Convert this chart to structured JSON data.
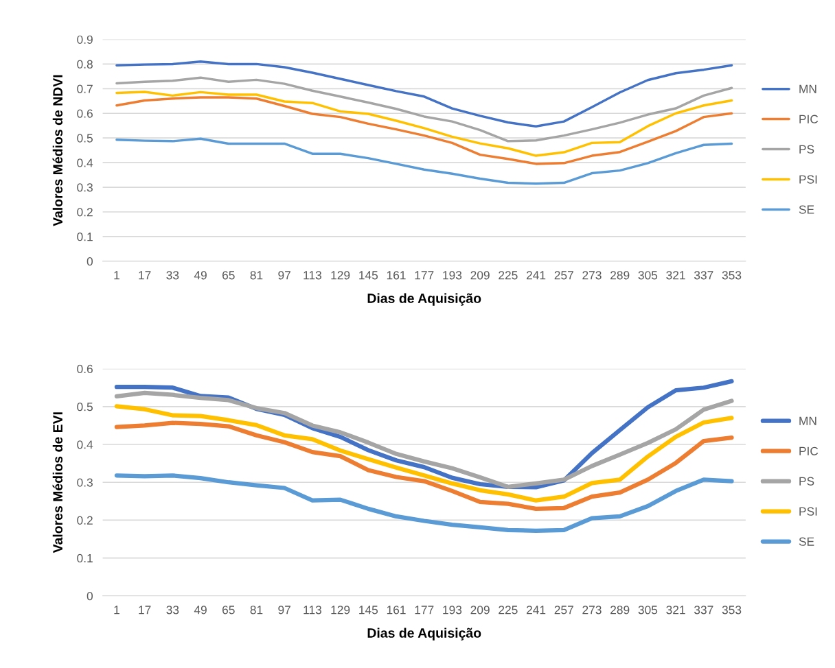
{
  "chart_data": [
    {
      "type": "line",
      "ylabel": "Valores Médios de NDVI",
      "xlabel": "Dias de Aquisição",
      "categories": [
        "1",
        "17",
        "33",
        "49",
        "65",
        "81",
        "97",
        "113",
        "129",
        "145",
        "161",
        "177",
        "193",
        "209",
        "225",
        "241",
        "257",
        "273",
        "289",
        "305",
        "321",
        "337",
        "353"
      ],
      "ylim": [
        0,
        0.9
      ],
      "yticks": [
        {
          "value": 0,
          "label": "0"
        },
        0.1,
        0.2,
        0.3,
        0.4,
        0.5,
        0.6,
        0.7,
        0.8,
        0.9
      ],
      "grid": "y",
      "legend": "right",
      "series": [
        {
          "name": "MN",
          "color": "#4472c4",
          "values": [
            0.795,
            0.798,
            0.8,
            0.81,
            0.8,
            0.8,
            0.787,
            0.765,
            0.74,
            0.715,
            0.69,
            0.668,
            0.62,
            0.59,
            0.563,
            0.547,
            0.567,
            0.625,
            0.685,
            0.735,
            0.763,
            0.777,
            0.795
          ]
        },
        {
          "name": "PIC",
          "color": "#ed7d31",
          "values": [
            0.632,
            0.652,
            0.66,
            0.665,
            0.665,
            0.66,
            0.63,
            0.598,
            0.585,
            0.558,
            0.535,
            0.51,
            0.48,
            0.432,
            0.415,
            0.395,
            0.398,
            0.428,
            0.443,
            0.485,
            0.528,
            0.585,
            0.6
          ]
        },
        {
          "name": "PS",
          "color": "#a5a5a5",
          "values": [
            0.722,
            0.728,
            0.732,
            0.745,
            0.728,
            0.736,
            0.72,
            0.692,
            0.668,
            0.644,
            0.618,
            0.587,
            0.567,
            0.532,
            0.487,
            0.49,
            0.51,
            0.535,
            0.562,
            0.595,
            0.62,
            0.672,
            0.703
          ]
        },
        {
          "name": "PSI",
          "color": "#ffc000",
          "values": [
            0.683,
            0.687,
            0.672,
            0.686,
            0.676,
            0.676,
            0.648,
            0.642,
            0.608,
            0.598,
            0.57,
            0.54,
            0.505,
            0.478,
            0.458,
            0.428,
            0.442,
            0.48,
            0.483,
            0.548,
            0.6,
            0.632,
            0.652
          ]
        },
        {
          "name": "SE",
          "color": "#5b9bd5",
          "values": [
            0.493,
            0.489,
            0.487,
            0.497,
            0.477,
            0.477,
            0.477,
            0.436,
            0.436,
            0.418,
            0.395,
            0.372,
            0.355,
            0.335,
            0.318,
            0.315,
            0.318,
            0.357,
            0.368,
            0.398,
            0.438,
            0.472,
            0.477
          ]
        }
      ]
    },
    {
      "type": "line",
      "ylabel": "Valores Médios de EVI",
      "xlabel": "Dias de Aquisição",
      "categories": [
        "1",
        "17",
        "33",
        "49",
        "65",
        "81",
        "97",
        "113",
        "129",
        "145",
        "161",
        "177",
        "193",
        "209",
        "225",
        "241",
        "257",
        "273",
        "289",
        "305",
        "321",
        "337",
        "353"
      ],
      "ylim": [
        0,
        0.6
      ],
      "yticks": [
        {
          "value": 0,
          "label": "0"
        },
        0.1,
        0.2,
        0.3,
        0.4,
        0.5,
        0.6
      ],
      "grid": "y",
      "legend": "right",
      "series": [
        {
          "name": "MN",
          "color": "#4472c4",
          "values": [
            0.552,
            0.552,
            0.55,
            0.528,
            0.524,
            0.494,
            0.478,
            0.443,
            0.42,
            0.385,
            0.358,
            0.34,
            0.312,
            0.295,
            0.288,
            0.287,
            0.305,
            0.377,
            0.438,
            0.498,
            0.543,
            0.55,
            0.567
          ]
        },
        {
          "name": "PIC",
          "color": "#ed7d31",
          "values": [
            0.446,
            0.45,
            0.457,
            0.454,
            0.448,
            0.424,
            0.406,
            0.38,
            0.369,
            0.332,
            0.314,
            0.303,
            0.277,
            0.248,
            0.243,
            0.23,
            0.232,
            0.262,
            0.273,
            0.307,
            0.351,
            0.409,
            0.418
          ]
        },
        {
          "name": "PS",
          "color": "#a5a5a5",
          "values": [
            0.527,
            0.536,
            0.531,
            0.523,
            0.517,
            0.496,
            0.483,
            0.45,
            0.432,
            0.405,
            0.375,
            0.355,
            0.337,
            0.313,
            0.288,
            0.297,
            0.307,
            0.343,
            0.373,
            0.404,
            0.44,
            0.492,
            0.515
          ]
        },
        {
          "name": "PSI",
          "color": "#ffc000",
          "values": [
            0.501,
            0.493,
            0.477,
            0.475,
            0.464,
            0.451,
            0.424,
            0.414,
            0.384,
            0.361,
            0.339,
            0.318,
            0.297,
            0.279,
            0.268,
            0.252,
            0.262,
            0.298,
            0.307,
            0.368,
            0.42,
            0.458,
            0.47
          ]
        },
        {
          "name": "SE",
          "color": "#5b9bd5",
          "values": [
            0.318,
            0.316,
            0.318,
            0.311,
            0.3,
            0.292,
            0.285,
            0.252,
            0.254,
            0.23,
            0.21,
            0.198,
            0.188,
            0.181,
            0.174,
            0.172,
            0.174,
            0.205,
            0.21,
            0.237,
            0.277,
            0.307,
            0.303
          ]
        }
      ]
    }
  ]
}
